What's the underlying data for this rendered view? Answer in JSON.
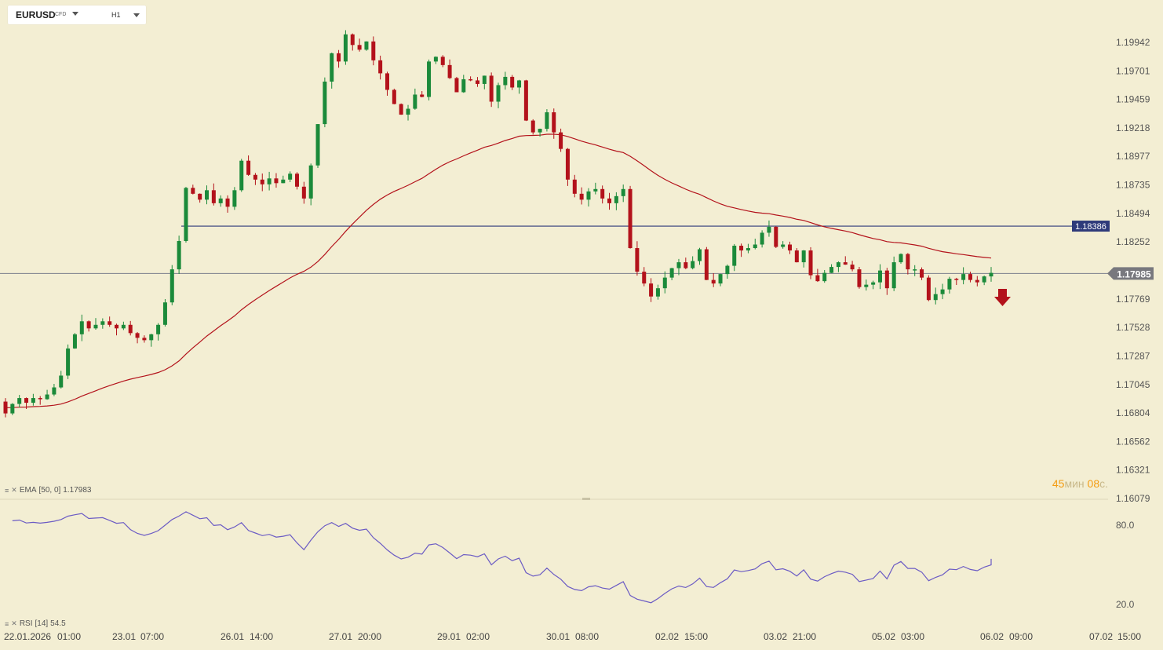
{
  "toolbar": {
    "symbol": "EURUSD",
    "instrument_type": "CFD",
    "timeframe": "H1"
  },
  "indicators": {
    "ema_label": "EMA",
    "ema_params": "[50, 0]",
    "ema_value": "1.17983",
    "rsi_label": "RSI",
    "rsi_params": "[14]",
    "rsi_value": "54.5"
  },
  "countdown": {
    "minutes": "45",
    "minutes_unit": "мин",
    "seconds": "08",
    "seconds_unit": "с."
  },
  "colors": {
    "background": "#f3eed3",
    "bull": "#1b8a3a",
    "bear": "#b3121b",
    "ema": "#b3121b",
    "rsi": "#6b5bc4",
    "hline": "#2e3a7a",
    "price_badge": "#78787e"
  },
  "chart_data": {
    "type": "candlestick",
    "y_ticks": [
      "1.19942",
      "1.19701",
      "1.19459",
      "1.19218",
      "1.18977",
      "1.18735",
      "1.18494",
      "1.18252",
      "1.17769",
      "1.17528",
      "1.17287",
      "1.17045",
      "1.16804",
      "1.16562",
      "1.16321",
      "1.16079"
    ],
    "x_ticks": [
      "22.01.2026",
      "01:00",
      "23.01",
      "07:00",
      "26.01",
      "14:00",
      "27.01",
      "20:00",
      "29.01",
      "02:00",
      "30.01",
      "08:00",
      "02.02",
      "15:00",
      "03.02",
      "21:00",
      "05.02",
      "03:00",
      "06.02",
      "09:00",
      "07.02",
      "15:00"
    ],
    "horizontal_line": {
      "value": 1.18386,
      "label": "1.18386"
    },
    "current_price": {
      "value": 1.17985,
      "label": "1.17985"
    },
    "signal": "down-arrow",
    "closes": [
      1.168,
      1.1688,
      1.1693,
      1.1689,
      1.1693,
      1.1692,
      1.1696,
      1.1702,
      1.1712,
      1.1735,
      1.1747,
      1.1758,
      1.1752,
      1.1755,
      1.1758,
      1.1755,
      1.1752,
      1.1755,
      1.1748,
      1.1744,
      1.1742,
      1.1747,
      1.1755,
      1.1774,
      1.1802,
      1.1826,
      1.1871,
      1.1866,
      1.1861,
      1.1869,
      1.1858,
      1.1862,
      1.1855,
      1.1869,
      1.1894,
      1.1882,
      1.1878,
      1.1874,
      1.1879,
      1.1875,
      1.1878,
      1.1883,
      1.1872,
      1.1862,
      1.189,
      1.1925,
      1.1961,
      1.1985,
      1.1978,
      1.2001,
      1.1992,
      1.1988,
      1.1995,
      1.1979,
      1.1968,
      1.1954,
      1.1942,
      1.1933,
      1.1938,
      1.195,
      1.1948,
      1.1978,
      1.1982,
      1.1975,
      1.1964,
      1.1952,
      1.1963,
      1.1962,
      1.1959,
      1.1966,
      1.1944,
      1.1958,
      1.1965,
      1.1956,
      1.1962,
      1.1928,
      1.1918,
      1.1921,
      1.1935,
      1.1918,
      1.1904,
      1.1878,
      1.1866,
      1.1861,
      1.1868,
      1.187,
      1.1862,
      1.1858,
      1.1864,
      1.187,
      1.182,
      1.18,
      1.179,
      1.1779,
      1.1786,
      1.1795,
      1.1803,
      1.1808,
      1.1803,
      1.1809,
      1.1819,
      1.1793,
      1.179,
      1.1798,
      1.1805,
      1.1822,
      1.1818,
      1.182,
      1.1823,
      1.1833,
      1.1838,
      1.1821,
      1.1823,
      1.1818,
      1.1808,
      1.1818,
      1.1797,
      1.1792,
      1.1799,
      1.1804,
      1.1808,
      1.1806,
      1.1802,
      1.1787,
      1.1789,
      1.1791,
      1.1801,
      1.1786,
      1.1808,
      1.1815,
      1.1802,
      1.1802,
      1.1795,
      1.1776,
      1.1781,
      1.1785,
      1.1794,
      1.1793,
      1.1798,
      1.1793,
      1.1791,
      1.1796,
      1.1799
    ],
    "rsi": {
      "levels": [
        80.0,
        20.0
      ],
      "last": 54.5
    }
  }
}
